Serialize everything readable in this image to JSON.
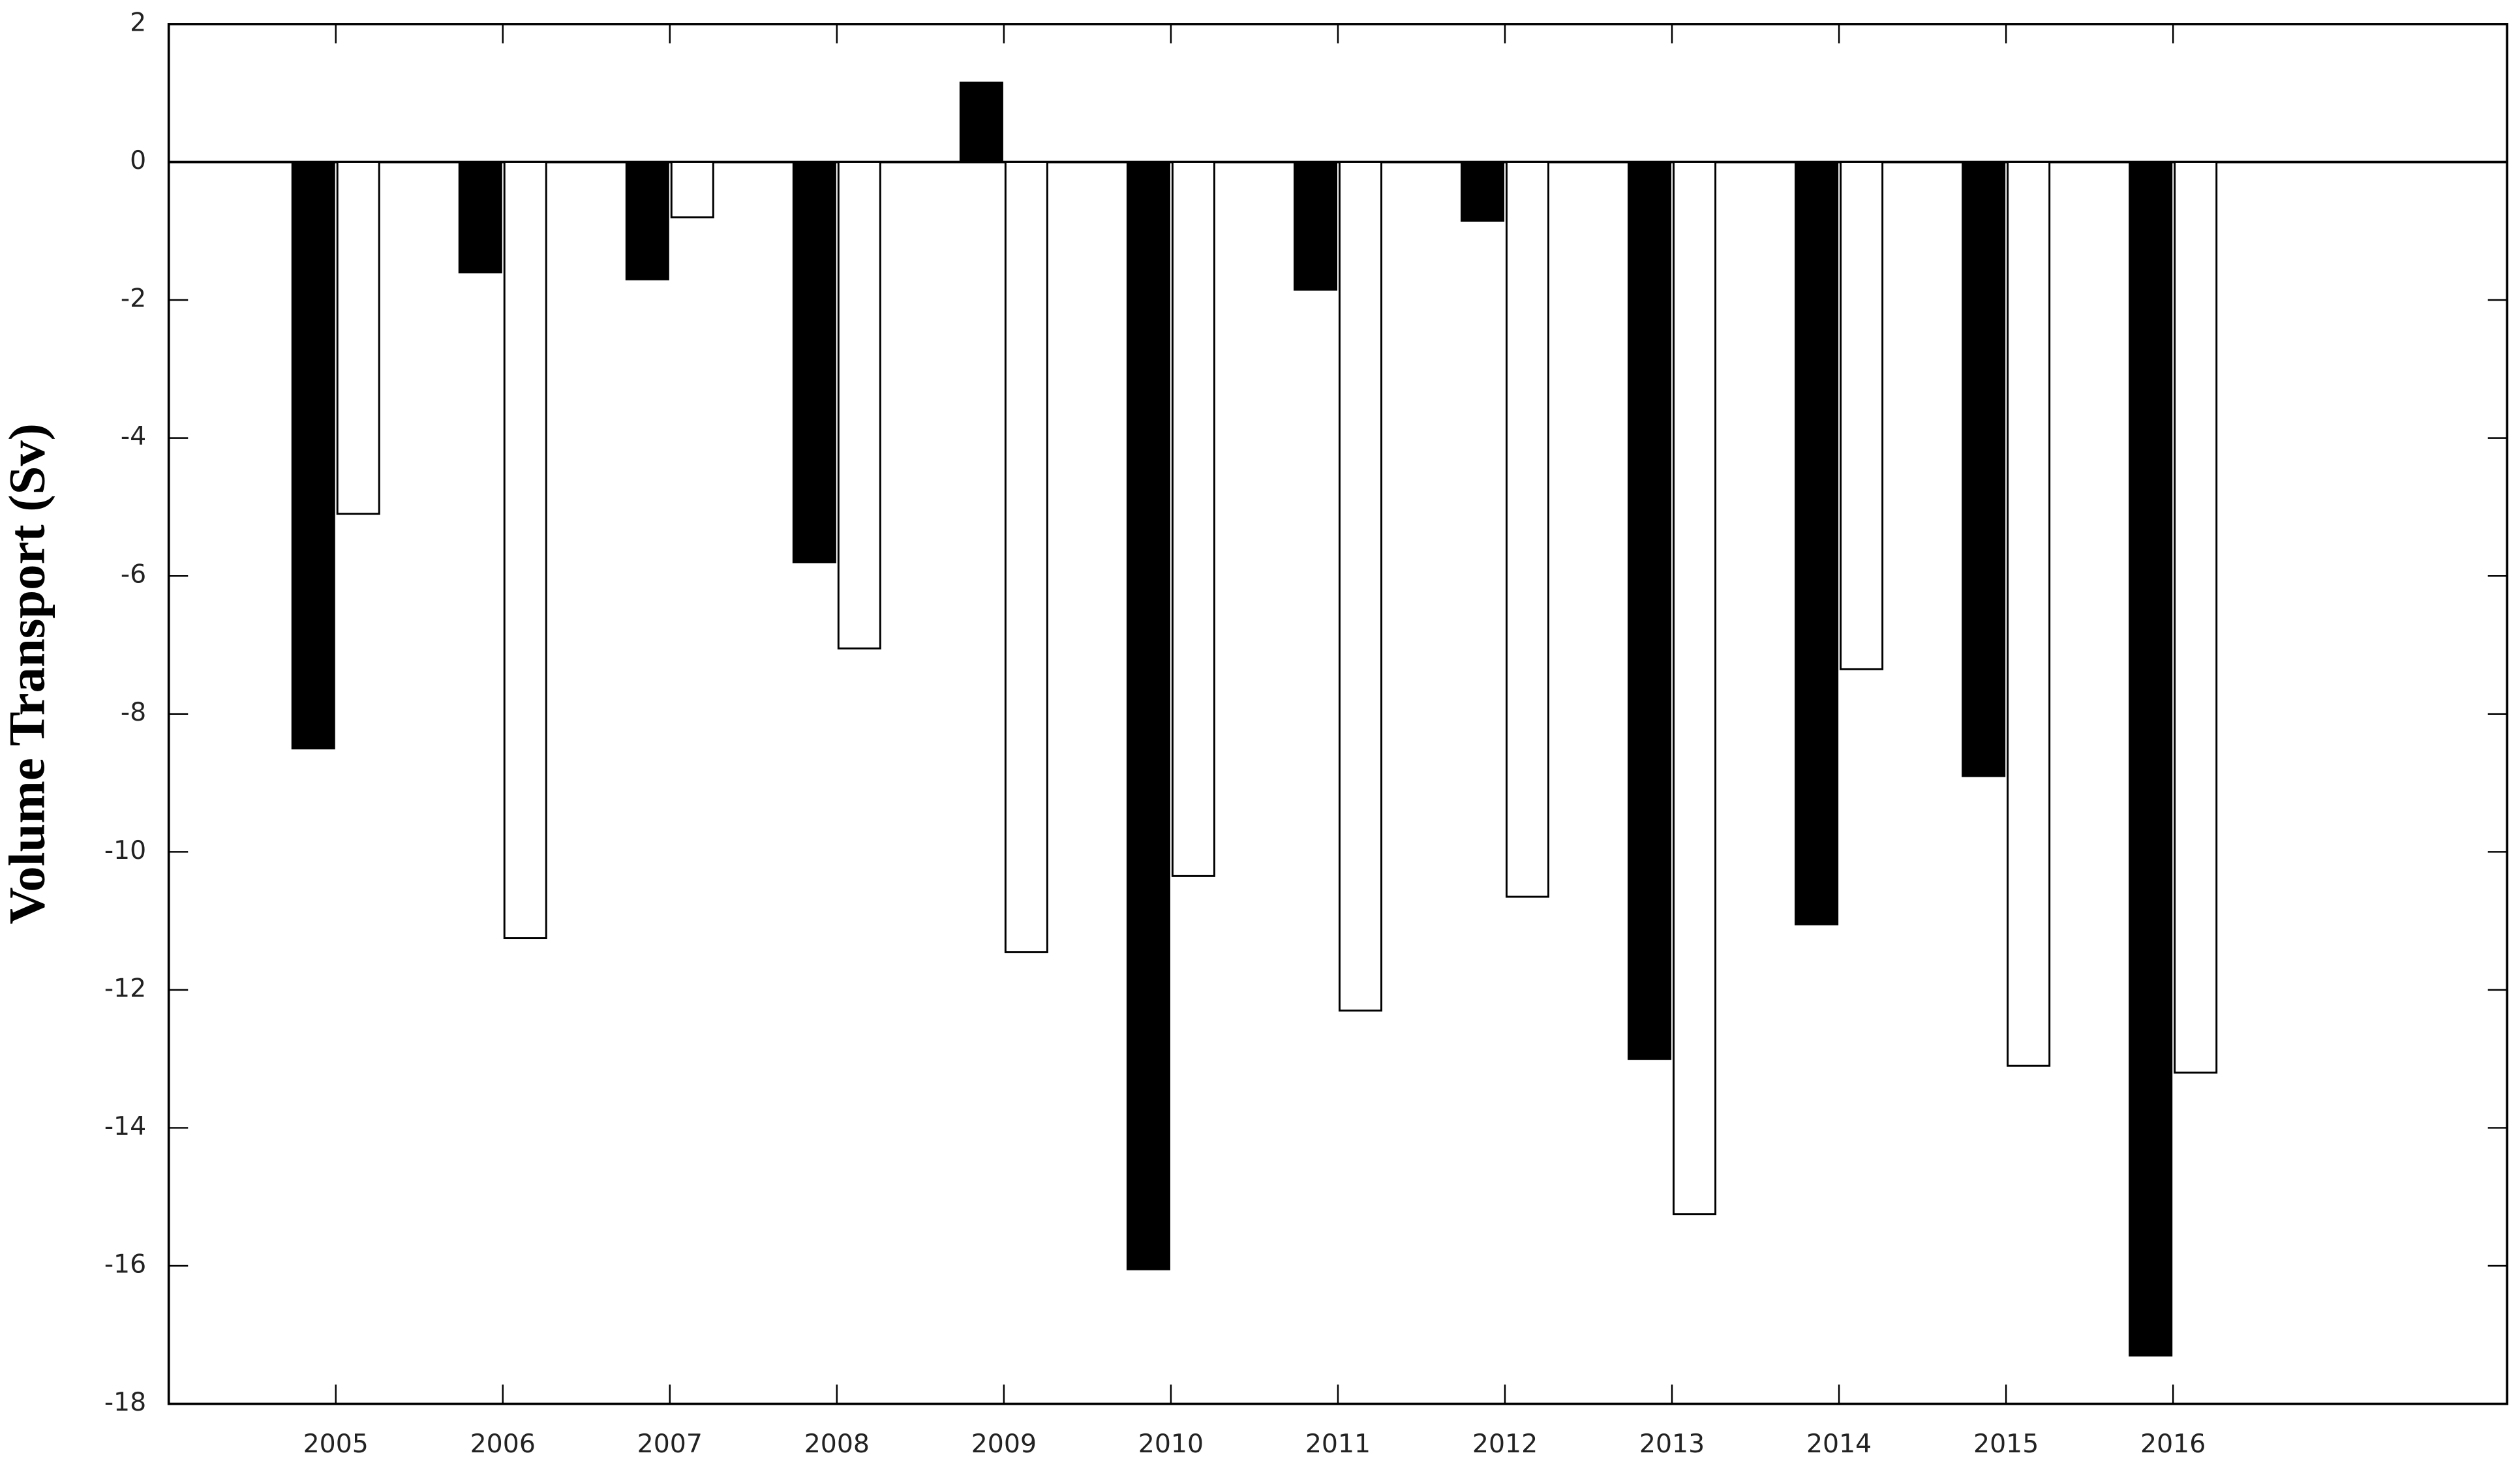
{
  "chart_data": {
    "type": "bar",
    "y_label": "Volume Transport (Sv)",
    "categories": [
      "2005",
      "2006",
      "2007",
      "2008",
      "2009",
      "2010",
      "2011",
      "2012",
      "2013",
      "2014",
      "2015",
      "2016"
    ],
    "series": [
      {
        "color": "#000000",
        "values": [
          -8.5,
          -1.6,
          -1.7,
          -5.8,
          1.15,
          -16.05,
          -1.85,
          -0.85,
          -13,
          -11.05,
          -8.9,
          -17.3
        ]
      },
      {
        "color": "#ffffff",
        "values": [
          -5.1,
          -11.25,
          -0.8,
          -7.05,
          -11.45,
          -10.35,
          -12.3,
          -10.65,
          -15.25,
          -7.35,
          -13.1,
          -13.2
        ]
      }
    ],
    "ylim": [
      -18,
      2
    ],
    "yticks": [
      -18,
      -16,
      -14,
      -12,
      -10,
      -8,
      -6,
      -4,
      -2,
      0,
      2
    ]
  }
}
